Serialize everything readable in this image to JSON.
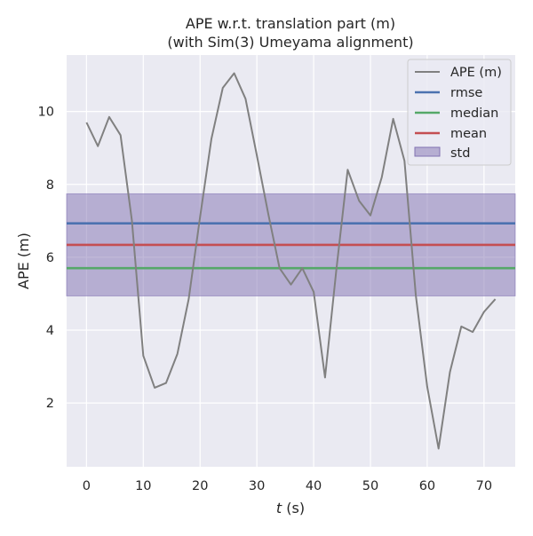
{
  "chart_data": {
    "type": "line",
    "title_lines": [
      "APE w.r.t. translation part (m)",
      "(with Sim(3) Umeyama alignment)"
    ],
    "xlabel_italic": "t",
    "xlabel_rest": " (s)",
    "ylabel": "APE (m)",
    "xlim": [
      -3.5,
      75.5
    ],
    "ylim": [
      0.25,
      11.55
    ],
    "x_ticks": [
      0,
      10,
      20,
      30,
      40,
      50,
      60,
      70
    ],
    "y_ticks": [
      2,
      4,
      6,
      8,
      10
    ],
    "grid": true,
    "legend_position": "top-right",
    "series": [
      {
        "name": "APE (m)",
        "color": "#808080",
        "x": [
          0,
          2,
          4,
          6,
          8,
          10,
          12,
          14,
          16,
          18,
          20,
          22,
          24,
          26,
          28,
          30,
          32,
          34,
          36,
          38,
          40,
          42,
          44,
          46,
          48,
          50,
          52,
          54,
          56,
          58,
          60,
          62,
          64,
          66,
          68,
          70,
          72
        ],
        "y": [
          9.7,
          9.05,
          9.85,
          9.35,
          7.0,
          3.3,
          2.42,
          2.55,
          3.35,
          4.85,
          7.1,
          9.25,
          10.65,
          11.05,
          10.35,
          8.8,
          7.2,
          5.7,
          5.25,
          5.7,
          5.05,
          2.7,
          5.65,
          8.4,
          7.55,
          7.15,
          8.2,
          9.8,
          8.65,
          4.95,
          2.45,
          0.75,
          2.85,
          4.1,
          3.95,
          4.5,
          4.85
        ]
      }
    ],
    "stats": {
      "rmse": {
        "name": "rmse",
        "value": 6.93,
        "color": "#4c72b0"
      },
      "median": {
        "name": "median",
        "value": 5.7,
        "color": "#55a868"
      },
      "mean": {
        "name": "mean",
        "value": 6.34,
        "color": "#c44e52"
      },
      "std": {
        "name": "std",
        "low": 4.94,
        "high": 7.74,
        "color": "#8172b2"
      }
    },
    "colors": {
      "background": "#eaeaf2",
      "grid": "#ffffff"
    }
  }
}
